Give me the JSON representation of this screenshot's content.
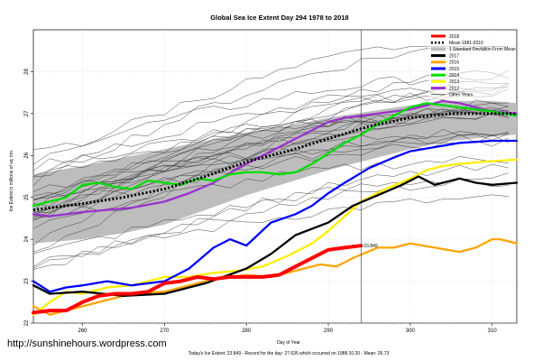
{
  "chart_data": {
    "type": "line",
    "title": "Global Sea Ice Extent Day 294 1978 to 2018",
    "xlabel": "Day of Year",
    "ylabel": "Ice Extent in millions of sq. km.",
    "xlim": [
      254,
      313
    ],
    "ylim": [
      22,
      29
    ],
    "x_ticks": [
      260,
      270,
      280,
      290,
      300,
      310
    ],
    "y_ticks": [
      22,
      23,
      24,
      25,
      26,
      27,
      28
    ],
    "current_day": 294,
    "grid": true,
    "legend_position": "top-right",
    "legend": [
      {
        "label": "2018",
        "color": "#ff0000"
      },
      {
        "label": "Mean 1981-2010",
        "color": "#000000"
      },
      {
        "label": "1 Standard Deviation From Mean",
        "color": "#bbbbbb"
      },
      {
        "label": "2017",
        "color": "#000000"
      },
      {
        "label": "2016",
        "color": "#ffa500"
      },
      {
        "label": "2015",
        "color": "#0000ff"
      },
      {
        "label": "2014",
        "color": "#00e000"
      },
      {
        "label": "2013",
        "color": "#ffff00"
      },
      {
        "label": "2012",
        "color": "#9a32cd"
      },
      {
        "label": "Other Years",
        "color": "#000000"
      }
    ],
    "std_band": {
      "x": [
        254,
        260,
        265,
        270,
        275,
        280,
        285,
        290,
        295,
        300,
        305,
        310,
        313
      ],
      "upper": [
        25.55,
        25.75,
        25.95,
        26.15,
        26.35,
        26.55,
        26.7,
        26.9,
        27.05,
        27.2,
        27.3,
        27.3,
        27.25
      ],
      "lower": [
        23.9,
        24.0,
        24.15,
        24.35,
        24.7,
        25.05,
        25.35,
        25.65,
        25.9,
        26.15,
        26.35,
        26.45,
        26.5
      ]
    },
    "series": [
      {
        "name": "Mean 1981-2010",
        "color": "#000000",
        "style": "dotted",
        "x": [
          254,
          260,
          265,
          270,
          275,
          280,
          285,
          290,
          295,
          300,
          305,
          310,
          313
        ],
        "y": [
          24.7,
          24.85,
          25.0,
          25.2,
          25.5,
          25.85,
          26.1,
          26.4,
          26.7,
          26.9,
          27.0,
          27.0,
          27.0
        ]
      },
      {
        "name": "2017",
        "color": "#000000",
        "style": "thick",
        "x": [
          254,
          256,
          260,
          265,
          270,
          275,
          280,
          283,
          286,
          290,
          293,
          296,
          299,
          301,
          303,
          306,
          308,
          310,
          313
        ],
        "y": [
          22.9,
          22.7,
          22.75,
          22.65,
          22.7,
          22.95,
          23.3,
          23.65,
          24.1,
          24.4,
          24.8,
          25.05,
          25.3,
          25.5,
          25.3,
          25.45,
          25.35,
          25.3,
          25.35
        ]
      },
      {
        "name": "2016",
        "color": "#ffa500",
        "style": "thick",
        "x": [
          254,
          256,
          258,
          262,
          266,
          270,
          273,
          276,
          280,
          283,
          286,
          289,
          291,
          293,
          296,
          298,
          300,
          303,
          306,
          308,
          310,
          311,
          313
        ],
        "y": [
          22.4,
          22.2,
          22.3,
          22.5,
          22.7,
          22.75,
          22.9,
          23.05,
          23.15,
          23.1,
          23.25,
          23.4,
          23.35,
          23.55,
          23.8,
          23.8,
          23.9,
          23.8,
          23.7,
          23.8,
          24.0,
          24.0,
          23.9
        ]
      },
      {
        "name": "2015",
        "color": "#0000ff",
        "style": "thick",
        "x": [
          254,
          256,
          258,
          260,
          263,
          266,
          270,
          273,
          276,
          278,
          280,
          283,
          286,
          288,
          290,
          292,
          295,
          298,
          300,
          303,
          306,
          310,
          313
        ],
        "y": [
          23.0,
          22.75,
          22.85,
          22.9,
          23.0,
          22.9,
          23.0,
          23.3,
          23.8,
          24.0,
          23.85,
          24.4,
          24.6,
          24.8,
          25.1,
          25.35,
          25.7,
          25.95,
          26.1,
          26.2,
          26.3,
          26.35,
          26.35
        ]
      },
      {
        "name": "2014",
        "color": "#00dd00",
        "style": "thick",
        "x": [
          254,
          256,
          258,
          260,
          262,
          264,
          266,
          268,
          270,
          272,
          274,
          276,
          278,
          280,
          282,
          284,
          286,
          288,
          290,
          292,
          294,
          296,
          298,
          300,
          302,
          304,
          306,
          308,
          310,
          313
        ],
        "y": [
          24.8,
          24.9,
          25.0,
          25.3,
          25.35,
          25.25,
          25.2,
          25.4,
          25.35,
          25.3,
          25.45,
          25.4,
          25.55,
          25.6,
          25.6,
          25.55,
          25.6,
          25.8,
          26.05,
          26.3,
          26.5,
          26.75,
          26.95,
          27.15,
          27.25,
          27.2,
          27.15,
          27.1,
          27.05,
          26.95
        ]
      },
      {
        "name": "2013",
        "color": "#ffee00",
        "style": "thick",
        "x": [
          254,
          256,
          258,
          260,
          263,
          266,
          270,
          273,
          276,
          279,
          282,
          285,
          288,
          290,
          292,
          294,
          297,
          300,
          302,
          304,
          306,
          309,
          313
        ],
        "y": [
          22.2,
          22.5,
          22.75,
          22.7,
          22.85,
          22.9,
          23.1,
          23.1,
          23.2,
          23.25,
          23.35,
          23.6,
          23.9,
          24.2,
          24.55,
          24.9,
          25.2,
          25.45,
          25.65,
          25.75,
          25.8,
          25.85,
          25.9
        ]
      },
      {
        "name": "2012",
        "color": "#9a32cd",
        "style": "thick",
        "x": [
          254,
          256,
          258,
          260,
          263,
          266,
          270,
          273,
          276,
          279,
          282,
          285,
          288,
          290,
          292,
          294,
          296,
          298,
          300,
          302,
          304,
          306,
          308,
          310,
          313
        ],
        "y": [
          24.6,
          24.55,
          24.6,
          24.65,
          24.7,
          24.75,
          24.9,
          25.1,
          25.35,
          25.7,
          26.0,
          26.3,
          26.6,
          26.8,
          26.9,
          26.95,
          27.0,
          27.05,
          27.1,
          27.2,
          27.3,
          27.25,
          27.15,
          27.05,
          27.0
        ]
      },
      {
        "name": "2018",
        "color": "#ff0000",
        "style": "extra-thick",
        "x": [
          254,
          256,
          258,
          260,
          262,
          264,
          266,
          268,
          270,
          272,
          274,
          276,
          278,
          280,
          282,
          284,
          286,
          288,
          290,
          292,
          294
        ],
        "y": [
          22.25,
          22.3,
          22.3,
          22.5,
          22.65,
          22.7,
          22.7,
          22.75,
          22.95,
          23.0,
          23.1,
          23.05,
          23.1,
          23.1,
          23.1,
          23.15,
          23.35,
          23.55,
          23.75,
          23.8,
          23.849
        ]
      }
    ],
    "annotations": {
      "end_value_label": "23.849",
      "footer": "Today's Ice Extent: 23.849  -  Record for the day: 27.635 which occurred on 1988.10.20  -  Mean: 26.73",
      "watermark": "http://sunshinehours.wordpress.com"
    }
  }
}
